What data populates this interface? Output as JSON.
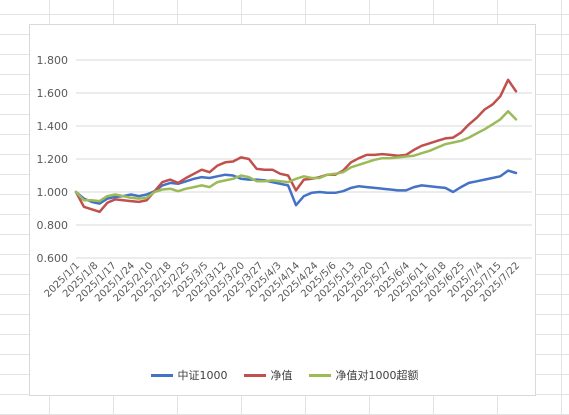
{
  "chart_data": {
    "type": "line",
    "title": "",
    "xlabel": "",
    "ylabel": "",
    "ylim": [
      0.6,
      1.8
    ],
    "yticks": [
      "0.600",
      "0.800",
      "1.000",
      "1.200",
      "1.400",
      "1.600",
      "1.800"
    ],
    "x_tick_labels": [
      "2025/1/1",
      "2025/1/8",
      "2025/1/17",
      "2025/1/24",
      "2025/2/10",
      "2025/2/18",
      "2025/2/25",
      "2025/3/5",
      "2025/3/12",
      "2025/3/20",
      "2025/3/27",
      "2025/4/3",
      "2025/4/14",
      "2025/4/24",
      "2025/5/6",
      "2025/5/13",
      "2025/5/20",
      "2025/5/27",
      "2025/6/4",
      "2025/6/11",
      "2025/6/18",
      "2025/6/25",
      "2025/7/4",
      "2025/7/15",
      "2025/7/22"
    ],
    "grid": true,
    "legend_position": "bottom",
    "series": [
      {
        "name": "中证1000",
        "color": "#4472C4",
        "values": [
          1.0,
          0.96,
          0.94,
          0.93,
          0.96,
          0.97,
          0.975,
          0.985,
          0.975,
          0.985,
          1.005,
          1.04,
          1.055,
          1.05,
          1.065,
          1.08,
          1.09,
          1.085,
          1.095,
          1.105,
          1.1,
          1.08,
          1.075,
          1.075,
          1.07,
          1.06,
          1.05,
          1.04,
          0.92,
          0.975,
          0.995,
          1.0,
          0.995,
          0.995,
          1.005,
          1.025,
          1.035,
          1.03,
          1.025,
          1.02,
          1.015,
          1.01,
          1.01,
          1.03,
          1.04,
          1.035,
          1.03,
          1.025,
          1.0,
          1.03,
          1.055,
          1.065,
          1.075,
          1.085,
          1.095,
          1.13,
          1.115
        ]
      },
      {
        "name": "净值",
        "color": "#C0504D",
        "values": [
          1.0,
          0.91,
          0.895,
          0.88,
          0.935,
          0.955,
          0.95,
          0.945,
          0.94,
          0.95,
          1.005,
          1.06,
          1.075,
          1.055,
          1.085,
          1.11,
          1.135,
          1.12,
          1.16,
          1.18,
          1.185,
          1.21,
          1.2,
          1.14,
          1.135,
          1.135,
          1.11,
          1.1,
          1.01,
          1.075,
          1.08,
          1.09,
          1.105,
          1.105,
          1.13,
          1.18,
          1.205,
          1.225,
          1.225,
          1.23,
          1.225,
          1.22,
          1.225,
          1.255,
          1.28,
          1.295,
          1.31,
          1.325,
          1.33,
          1.36,
          1.41,
          1.45,
          1.5,
          1.53,
          1.58,
          1.68,
          1.61
        ]
      },
      {
        "name": "净值对1000超额",
        "color": "#9BBB59",
        "values": [
          1.0,
          0.95,
          0.95,
          0.945,
          0.975,
          0.985,
          0.975,
          0.965,
          0.96,
          0.965,
          1.0,
          1.015,
          1.02,
          1.005,
          1.02,
          1.03,
          1.04,
          1.03,
          1.06,
          1.07,
          1.08,
          1.1,
          1.09,
          1.065,
          1.065,
          1.07,
          1.065,
          1.06,
          1.08,
          1.095,
          1.085,
          1.085,
          1.105,
          1.11,
          1.12,
          1.15,
          1.165,
          1.18,
          1.195,
          1.205,
          1.205,
          1.21,
          1.215,
          1.22,
          1.235,
          1.25,
          1.27,
          1.29,
          1.3,
          1.31,
          1.33,
          1.355,
          1.38,
          1.41,
          1.44,
          1.49,
          1.44
        ]
      }
    ]
  }
}
